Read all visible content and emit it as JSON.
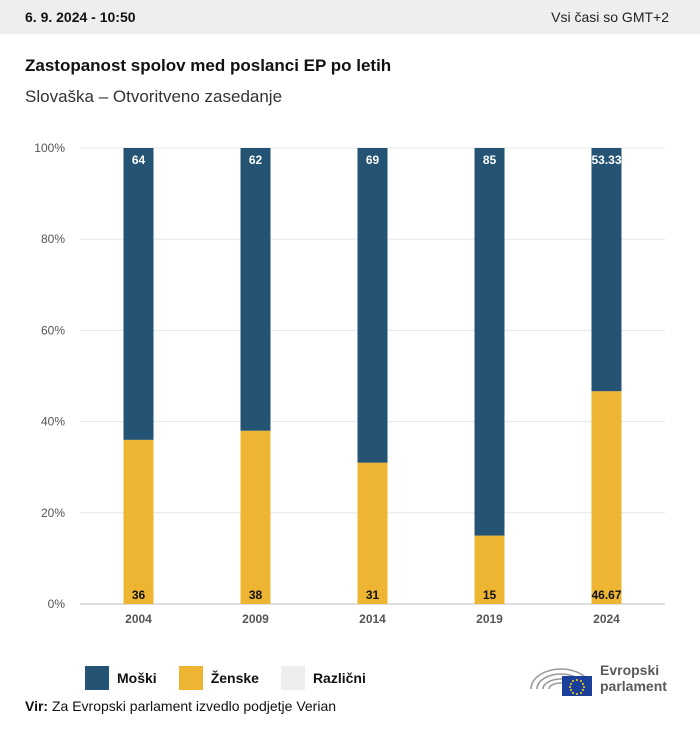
{
  "header": {
    "datetime": "6. 9. 2024 - 10:50",
    "timezone": "Vsi časi so GMT+2"
  },
  "title": "Zastopanost spolov med poslanci EP po letih",
  "subtitle": "Slovaška – Otvoritveno zasedanje",
  "colors": {
    "men": "#245373",
    "women": "#edb532",
    "other": "#eeeef0"
  },
  "legend": [
    {
      "label": "Moški",
      "color": "#245373"
    },
    {
      "label": "Ženske",
      "color": "#edb532"
    },
    {
      "label": "Različni",
      "color": "#eeeef0"
    }
  ],
  "source": {
    "label": "Vir:",
    "text": "Za Evropski parlament izvedlo podjetje Verian"
  },
  "logo": {
    "line1": "Evropski",
    "line2": "parlament"
  },
  "chart_data": {
    "type": "bar",
    "stacked": true,
    "categories": [
      "2004",
      "2009",
      "2014",
      "2019",
      "2024"
    ],
    "series": [
      {
        "name": "Ženske",
        "values": [
          36,
          38,
          31,
          15,
          46.67
        ],
        "labels": [
          "36",
          "38",
          "31",
          "15",
          "46.67"
        ]
      },
      {
        "name": "Moški",
        "values": [
          64,
          62,
          69,
          85,
          53.33
        ],
        "labels": [
          "64",
          "62",
          "69",
          "85",
          "53.33"
        ]
      },
      {
        "name": "Različni",
        "values": [
          0,
          0,
          0,
          0,
          0
        ],
        "labels": [
          "",
          "",
          "",
          "",
          ""
        ]
      }
    ],
    "yticks": [
      "0%",
      "20%",
      "40%",
      "60%",
      "80%",
      "100%"
    ],
    "ylim": [
      0,
      100
    ],
    "grid": true,
    "legend_position": "bottom-left"
  }
}
